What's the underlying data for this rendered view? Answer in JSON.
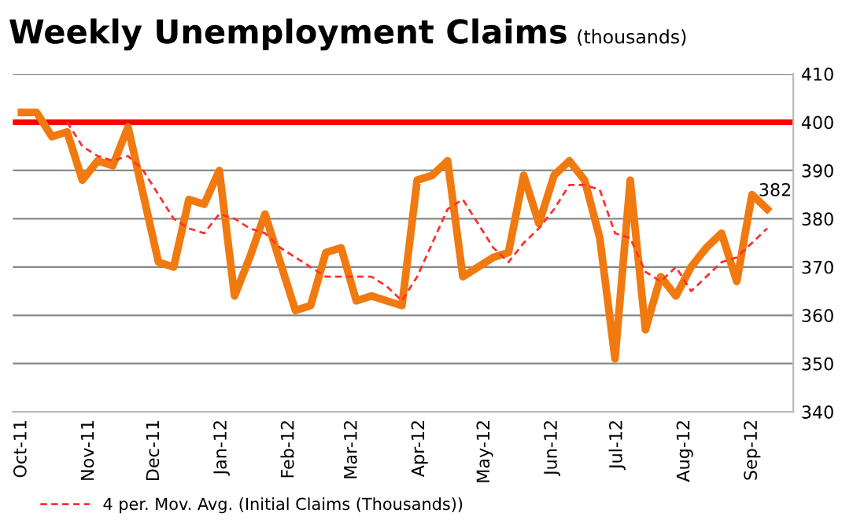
{
  "chart_data": {
    "type": "line",
    "title": "Weekly Unemployment Claims",
    "subtitle": "(thousands)",
    "x": [
      "2011-10-01",
      "2011-10-08",
      "2011-10-15",
      "2011-10-22",
      "2011-10-29",
      "2011-11-05",
      "2011-11-12",
      "2011-11-19",
      "2011-11-26",
      "2011-12-03",
      "2011-12-10",
      "2011-12-17",
      "2011-12-24",
      "2011-12-31",
      "2012-01-07",
      "2012-01-14",
      "2012-01-21",
      "2012-01-28",
      "2012-02-04",
      "2012-02-11",
      "2012-02-18",
      "2012-02-25",
      "2012-03-03",
      "2012-03-10",
      "2012-03-17",
      "2012-03-24",
      "2012-03-31",
      "2012-04-07",
      "2012-04-14",
      "2012-04-21",
      "2012-04-28",
      "2012-05-05",
      "2012-05-12",
      "2012-05-19",
      "2012-05-26",
      "2012-06-02",
      "2012-06-09",
      "2012-06-16",
      "2012-06-23",
      "2012-06-30",
      "2012-07-07",
      "2012-07-14",
      "2012-07-21",
      "2012-07-28",
      "2012-08-04",
      "2012-08-11",
      "2012-08-18",
      "2012-08-25",
      "2012-09-01",
      "2012-09-08"
    ],
    "series": [
      {
        "color": "#f07a10",
        "line_style": "solid",
        "values": [
          402,
          402,
          397,
          398,
          388,
          392,
          391,
          399,
          385,
          371,
          370,
          384,
          383,
          390,
          364,
          372,
          381,
          371,
          361,
          362,
          373,
          374,
          363,
          364,
          363,
          362,
          388,
          389,
          392,
          368,
          370,
          372,
          373,
          389,
          379,
          389,
          392,
          388,
          376,
          351,
          388,
          357,
          368,
          364,
          370,
          374,
          377,
          367,
          385,
          382
        ]
      },
      {
        "name": "4 per. Mov. Avg. (Initial Claims (Thousands))",
        "color": "#ff3030",
        "line_style": "dashed",
        "values": [
          null,
          null,
          null,
          400,
          395,
          393,
          392,
          393,
          390,
          385,
          380,
          378,
          377,
          381,
          380,
          378,
          377,
          374,
          372,
          370,
          368,
          368,
          368,
          368,
          366,
          363,
          368,
          375,
          382,
          384,
          379,
          374,
          371,
          375,
          378,
          382,
          387,
          387,
          386,
          377,
          376,
          369,
          367,
          370,
          365,
          368,
          371,
          372,
          375,
          378
        ]
      }
    ],
    "xlim": [
      "2011-09-27",
      "2012-09-20"
    ],
    "xticks": [
      {
        "value": "2011-10-01",
        "label": "Oct-11"
      },
      {
        "value": "2011-11-01",
        "label": "Nov-11"
      },
      {
        "value": "2011-12-01",
        "label": "Dec-11"
      },
      {
        "value": "2012-01-01",
        "label": "Jan-12"
      },
      {
        "value": "2012-02-01",
        "label": "Feb-12"
      },
      {
        "value": "2012-03-01",
        "label": "Mar-12"
      },
      {
        "value": "2012-04-01",
        "label": "Apr-12"
      },
      {
        "value": "2012-05-01",
        "label": "May-12"
      },
      {
        "value": "2012-06-01",
        "label": "Jun-12"
      },
      {
        "value": "2012-07-01",
        "label": "Jul-12"
      },
      {
        "value": "2012-08-01",
        "label": "Aug-12"
      },
      {
        "value": "2012-09-01",
        "label": "Sep-12"
      }
    ],
    "ylim": [
      340,
      410
    ],
    "yticks": [
      340,
      350,
      360,
      370,
      380,
      390,
      400,
      410
    ],
    "ref_lines": [
      {
        "axis": "y",
        "value": 400,
        "color": "#ff0000",
        "line_style": "solid"
      }
    ],
    "annotations": [
      {
        "text": "382",
        "x": "2012-09-08",
        "y": 382
      }
    ],
    "grid": "y",
    "legend": "bottom left",
    "marker": "none"
  }
}
